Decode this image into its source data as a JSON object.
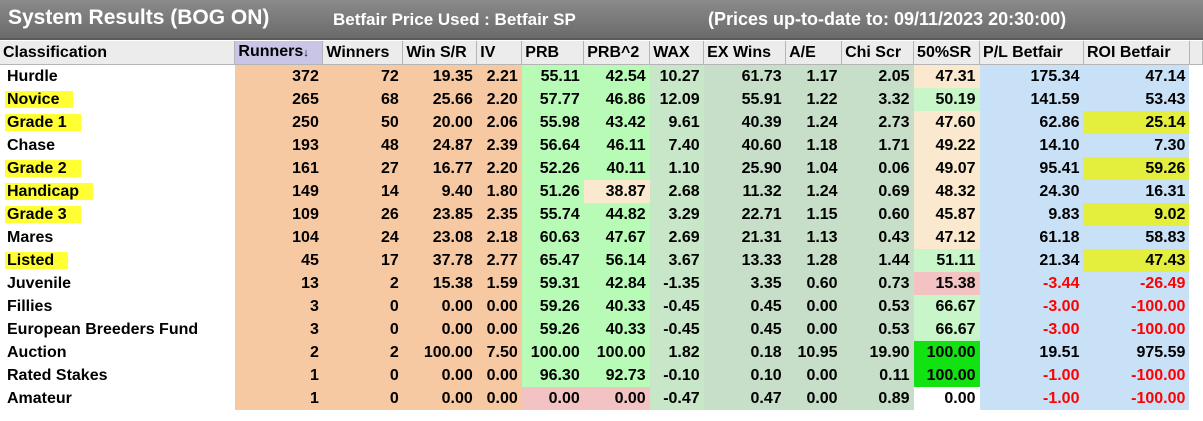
{
  "title": {
    "system": "System Results (BOG ON)",
    "price_used": "Betfair Price Used : Betfair SP",
    "up_to_date": "(Prices up-to-date to: 09/11/2023 20:30:00)"
  },
  "colors": {
    "runners_winners": "#f7c9a3",
    "stats": "#f7c9a3",
    "prb_green": "#b7fbb7",
    "prb_pink": "#f3c3c3",
    "prb_cream": "#fbe9cf",
    "wax_green": "#c8e6c8",
    "ex_green": "#c7dfc9",
    "sr_cream": "#fbe9cf",
    "sr_green": "#c8f6c8",
    "sr_pink": "#f3c3c3",
    "sr_bright": "#12e112",
    "pl_blue": "#c9e1f7",
    "roi_yellow": "#e4ee3c",
    "highlight": "#ffff33",
    "negative": "#ff0000"
  },
  "table": {
    "headers": [
      "Classification",
      "Runners",
      "Winners",
      "Win S/R",
      "IV",
      "PRB",
      "PRB^2",
      "WAX",
      "EX Wins",
      "A/E",
      "Chi Scr",
      "50%SR",
      "P/L Betfair",
      "ROI Betfair"
    ],
    "sort_icon": "sort-descending-icon",
    "rows": [
      {
        "name": "Hurdle",
        "runners": "372",
        "winners": "72",
        "win_sr": "19.35",
        "iv": "2.21",
        "prb": "55.11",
        "prb2": "42.54",
        "wax": "10.27",
        "ex_wins": "61.73",
        "ae": "1.17",
        "chi": "2.05",
        "sr50": "47.31",
        "pl": "175.34",
        "roi": "47.14",
        "highlight": false,
        "prb_tone": "green",
        "sr_tone": "cream",
        "roi_tone": "plain"
      },
      {
        "name": "Novice",
        "runners": "265",
        "winners": "68",
        "win_sr": "25.66",
        "iv": "2.20",
        "prb": "57.77",
        "prb2": "46.86",
        "wax": "12.09",
        "ex_wins": "55.91",
        "ae": "1.22",
        "chi": "3.32",
        "sr50": "50.19",
        "pl": "141.59",
        "roi": "53.43",
        "highlight": true,
        "prb_tone": "green",
        "sr_tone": "green",
        "roi_tone": "plain"
      },
      {
        "name": "Grade 1",
        "runners": "250",
        "winners": "50",
        "win_sr": "20.00",
        "iv": "2.06",
        "prb": "55.98",
        "prb2": "43.42",
        "wax": "9.61",
        "ex_wins": "40.39",
        "ae": "1.24",
        "chi": "2.73",
        "sr50": "47.60",
        "pl": "62.86",
        "roi": "25.14",
        "highlight": true,
        "prb_tone": "green",
        "sr_tone": "cream",
        "roi_tone": "yellow"
      },
      {
        "name": "Chase",
        "runners": "193",
        "winners": "48",
        "win_sr": "24.87",
        "iv": "2.39",
        "prb": "56.64",
        "prb2": "46.11",
        "wax": "7.40",
        "ex_wins": "40.60",
        "ae": "1.18",
        "chi": "1.71",
        "sr50": "49.22",
        "pl": "14.10",
        "roi": "7.30",
        "highlight": false,
        "prb_tone": "green",
        "sr_tone": "cream",
        "roi_tone": "plain"
      },
      {
        "name": "Grade 2",
        "runners": "161",
        "winners": "27",
        "win_sr": "16.77",
        "iv": "2.20",
        "prb": "52.26",
        "prb2": "40.11",
        "wax": "1.10",
        "ex_wins": "25.90",
        "ae": "1.04",
        "chi": "0.06",
        "sr50": "49.07",
        "pl": "95.41",
        "roi": "59.26",
        "highlight": true,
        "prb_tone": "green",
        "sr_tone": "cream",
        "roi_tone": "yellow"
      },
      {
        "name": "Handicap",
        "runners": "149",
        "winners": "14",
        "win_sr": "9.40",
        "iv": "1.80",
        "prb": "51.26",
        "prb2": "38.87",
        "wax": "2.68",
        "ex_wins": "11.32",
        "ae": "1.24",
        "chi": "0.69",
        "sr50": "48.32",
        "pl": "24.30",
        "roi": "16.31",
        "highlight": true,
        "prb_tone": "green",
        "prb2_tone": "cream",
        "sr_tone": "cream",
        "roi_tone": "plain"
      },
      {
        "name": "Grade 3",
        "runners": "109",
        "winners": "26",
        "win_sr": "23.85",
        "iv": "2.35",
        "prb": "55.74",
        "prb2": "44.82",
        "wax": "3.29",
        "ex_wins": "22.71",
        "ae": "1.15",
        "chi": "0.60",
        "sr50": "45.87",
        "pl": "9.83",
        "roi": "9.02",
        "highlight": true,
        "prb_tone": "green",
        "sr_tone": "cream",
        "roi_tone": "yellow"
      },
      {
        "name": "Mares",
        "runners": "104",
        "winners": "24",
        "win_sr": "23.08",
        "iv": "2.18",
        "prb": "60.63",
        "prb2": "47.67",
        "wax": "2.69",
        "ex_wins": "21.31",
        "ae": "1.13",
        "chi": "0.43",
        "sr50": "47.12",
        "pl": "61.18",
        "roi": "58.83",
        "highlight": false,
        "prb_tone": "green",
        "sr_tone": "cream",
        "roi_tone": "plain"
      },
      {
        "name": "Listed",
        "runners": "45",
        "winners": "17",
        "win_sr": "37.78",
        "iv": "2.77",
        "prb": "65.47",
        "prb2": "56.14",
        "wax": "3.67",
        "ex_wins": "13.33",
        "ae": "1.28",
        "chi": "1.44",
        "sr50": "51.11",
        "pl": "21.34",
        "roi": "47.43",
        "highlight": true,
        "prb_tone": "green",
        "sr_tone": "green",
        "roi_tone": "yellow"
      },
      {
        "name": "Juvenile",
        "runners": "13",
        "winners": "2",
        "win_sr": "15.38",
        "iv": "1.59",
        "prb": "59.31",
        "prb2": "42.84",
        "wax": "-1.35",
        "ex_wins": "3.35",
        "ae": "0.60",
        "chi": "0.73",
        "sr50": "15.38",
        "pl": "-3.44",
        "roi": "-26.49",
        "highlight": false,
        "prb_tone": "green",
        "sr_tone": "pink",
        "roi_tone": "plain"
      },
      {
        "name": "Fillies",
        "runners": "3",
        "winners": "0",
        "win_sr": "0.00",
        "iv": "0.00",
        "prb": "59.26",
        "prb2": "40.33",
        "wax": "-0.45",
        "ex_wins": "0.45",
        "ae": "0.00",
        "chi": "0.53",
        "sr50": "66.67",
        "pl": "-3.00",
        "roi": "-100.00",
        "highlight": false,
        "prb_tone": "green",
        "sr_tone": "green",
        "roi_tone": "plain"
      },
      {
        "name": "European Breeders Fund",
        "runners": "3",
        "winners": "0",
        "win_sr": "0.00",
        "iv": "0.00",
        "prb": "59.26",
        "prb2": "40.33",
        "wax": "-0.45",
        "ex_wins": "0.45",
        "ae": "0.00",
        "chi": "0.53",
        "sr50": "66.67",
        "pl": "-3.00",
        "roi": "-100.00",
        "highlight": false,
        "prb_tone": "green",
        "sr_tone": "green",
        "roi_tone": "plain"
      },
      {
        "name": "Auction",
        "runners": "2",
        "winners": "2",
        "win_sr": "100.00",
        "iv": "7.50",
        "prb": "100.00",
        "prb2": "100.00",
        "wax": "1.82",
        "ex_wins": "0.18",
        "ae": "10.95",
        "chi": "19.90",
        "sr50": "100.00",
        "pl": "19.51",
        "roi": "975.59",
        "highlight": false,
        "prb_tone": "green",
        "sr_tone": "bright",
        "roi_tone": "plain"
      },
      {
        "name": "Rated Stakes",
        "runners": "1",
        "winners": "0",
        "win_sr": "0.00",
        "iv": "0.00",
        "prb": "96.30",
        "prb2": "92.73",
        "wax": "-0.10",
        "ex_wins": "0.10",
        "ae": "0.00",
        "chi": "0.11",
        "sr50": "100.00",
        "pl": "-1.00",
        "roi": "-100.00",
        "highlight": false,
        "prb_tone": "green",
        "sr_tone": "bright",
        "roi_tone": "plain"
      },
      {
        "name": "Amateur",
        "runners": "1",
        "winners": "0",
        "win_sr": "0.00",
        "iv": "0.00",
        "prb": "0.00",
        "prb2": "0.00",
        "wax": "-0.47",
        "ex_wins": "0.47",
        "ae": "0.00",
        "chi": "0.89",
        "sr50": "0.00",
        "pl": "-1.00",
        "roi": "-100.00",
        "highlight": false,
        "prb_tone": "pink",
        "sr_tone": "white",
        "roi_tone": "plain"
      }
    ]
  }
}
